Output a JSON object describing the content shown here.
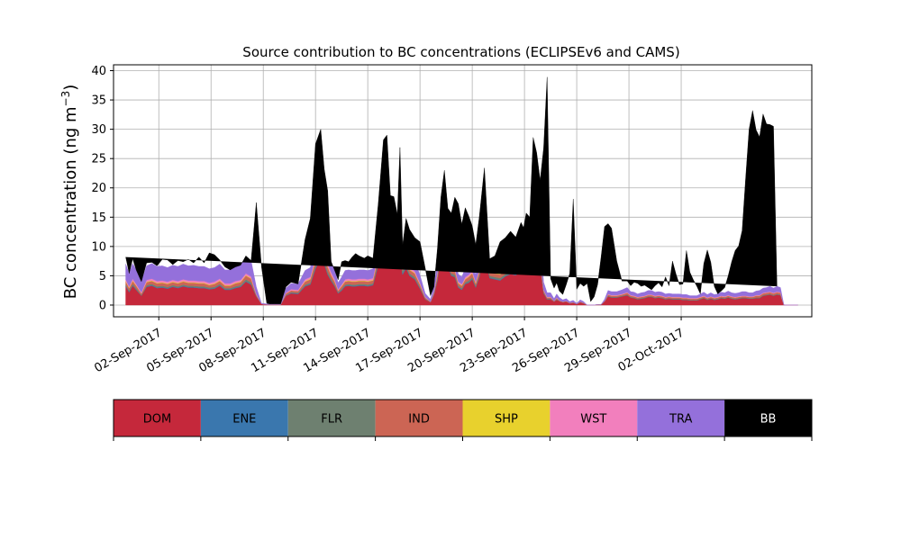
{
  "chart_data": {
    "type": "area",
    "title": "Source contribution to BC concentrations (ECLIPSEv6 and CAMS)",
    "ylabel_main": "BC concentration (ng m",
    "ylabel_sup": "−3",
    "ylabel_close": ")",
    "ylim": [
      -2,
      41
    ],
    "yticks": [
      0,
      5,
      10,
      15,
      20,
      25,
      30,
      35,
      40
    ],
    "x_start_date": "2017-09-01",
    "xlim_days": [
      -1.6,
      38.5
    ],
    "xticks": [
      {
        "day": 1,
        "label": "02-Sep-2017"
      },
      {
        "day": 4,
        "label": "05-Sep-2017"
      },
      {
        "day": 7,
        "label": "08-Sep-2017"
      },
      {
        "day": 10,
        "label": "11-Sep-2017"
      },
      {
        "day": 13,
        "label": "14-Sep-2017"
      },
      {
        "day": 16,
        "label": "17-Sep-2017"
      },
      {
        "day": 19,
        "label": "20-Sep-2017"
      },
      {
        "day": 22,
        "label": "23-Sep-2017"
      },
      {
        "day": 25,
        "label": "26-Sep-2017"
      },
      {
        "day": 28,
        "label": "29-Sep-2017"
      },
      {
        "day": 31,
        "label": "02-Oct-2017"
      }
    ],
    "grid": true,
    "colors": {
      "DOM": "#c5283b",
      "ENE": "#3a77ae",
      "FLR": "#6e8070",
      "IND": "#cc6554",
      "SHP": "#e8d12d",
      "WST": "#f27fbd",
      "TRA": "#9470db",
      "BB": "#000000"
    },
    "legend": [
      {
        "name": "DOM",
        "color": "#c5283b",
        "text_color": "#000000"
      },
      {
        "name": "ENE",
        "color": "#3a77ae",
        "text_color": "#000000"
      },
      {
        "name": "FLR",
        "color": "#6e8070",
        "text_color": "#000000"
      },
      {
        "name": "IND",
        "color": "#cc6554",
        "text_color": "#000000"
      },
      {
        "name": "SHP",
        "color": "#e8d12d",
        "text_color": "#000000"
      },
      {
        "name": "WST",
        "color": "#f27fbd",
        "text_color": "#000000"
      },
      {
        "name": "TRA",
        "color": "#9470db",
        "text_color": "#000000"
      },
      {
        "name": "BB",
        "color": "#000000",
        "text_color": "#ffffff"
      }
    ],
    "series_order": [
      "DOM",
      "ENE",
      "FLR",
      "IND",
      "SHP",
      "WST",
      "TRA",
      "BB"
    ],
    "x": [
      -0.9,
      -0.7,
      -0.5,
      -0.3,
      0,
      0.3,
      0.6,
      0.9,
      1.2,
      1.5,
      1.8,
      2.1,
      2.4,
      2.7,
      3.0,
      3.3,
      3.6,
      3.9,
      4.2,
      4.5,
      4.8,
      5.1,
      5.4,
      5.7,
      6.0,
      6.3,
      6.6,
      6.9,
      7.2,
      7.35,
      7.5,
      7.65,
      7.8,
      8.0,
      8.3,
      8.6,
      9.0,
      9.4,
      9.7,
      10.0,
      10.3,
      10.5,
      10.7,
      10.9,
      11.1,
      11.3,
      11.5,
      11.7,
      11.9,
      12.1,
      12.3,
      12.5,
      12.8,
      13.0,
      13.3,
      13.6,
      13.9,
      14.1,
      14.3,
      14.5,
      14.7,
      14.85,
      15.0,
      15.2,
      15.4,
      15.7,
      16.0,
      16.3,
      16.6,
      16.8,
      17.0,
      17.2,
      17.4,
      17.6,
      17.8,
      18.0,
      18.2,
      18.4,
      18.6,
      18.8,
      19.0,
      19.2,
      19.4,
      19.7,
      20.0,
      20.3,
      20.6,
      20.9,
      21.2,
      21.5,
      21.8,
      21.95,
      22.1,
      22.3,
      22.5,
      22.7,
      22.9,
      23.1,
      23.3,
      23.5,
      23.7,
      23.85,
      24.0,
      24.2,
      24.4,
      24.6,
      24.8,
      25.0,
      25.2,
      25.4,
      25.6,
      25.8,
      26.0,
      26.2,
      26.4,
      26.6,
      26.8,
      27.0,
      27.3,
      27.6,
      27.9,
      28.1,
      28.3,
      28.5,
      28.7,
      28.9,
      29.1,
      29.3,
      29.5,
      29.7,
      29.9,
      30.1,
      30.3,
      30.5,
      30.7,
      30.9,
      31.1,
      31.3,
      31.5,
      31.7,
      31.9,
      32.1,
      32.3,
      32.5,
      32.7,
      32.9,
      33.1,
      33.3,
      33.5,
      33.7,
      33.9,
      34.1,
      34.3,
      34.5,
      34.7,
      34.9,
      35.1,
      35.3,
      35.5,
      35.7,
      35.9,
      36.1,
      36.3,
      36.5,
      36.7,
      36.9,
      37.1,
      37.3,
      37.5,
      37.7
    ],
    "dom": [
      3.2,
      2.2,
      3.3,
      2.6,
      1.6,
      3.1,
      3.3,
      2.9,
      3.0,
      2.8,
      3.1,
      2.9,
      3.2,
      3.0,
      3.0,
      2.9,
      2.9,
      2.7,
      2.8,
      3.3,
      2.6,
      2.6,
      2.9,
      3.1,
      4.0,
      3.5,
      1.5,
      0.2,
      0.1,
      0.1,
      0.1,
      0.1,
      0.1,
      0.1,
      1.6,
      2.0,
      1.9,
      3.2,
      3.5,
      6.2,
      8.0,
      7.0,
      5.2,
      4.1,
      3.2,
      2.0,
      2.5,
      3.2,
      3.3,
      3.2,
      3.2,
      3.3,
      3.3,
      3.2,
      3.4,
      6.8,
      10.4,
      12.5,
      10.1,
      7.8,
      8.5,
      8.0,
      5.2,
      6.3,
      5.0,
      4.4,
      2.8,
      1.0,
      0.5,
      1.8,
      4.2,
      8.8,
      7.6,
      6.6,
      5.0,
      4.8,
      3.0,
      2.6,
      3.6,
      3.8,
      4.4,
      3.0,
      4.7,
      8.8,
      4.6,
      4.4,
      4.2,
      4.9,
      5.3,
      5.1,
      5.7,
      6.1,
      6.8,
      7.8,
      7.2,
      6.5,
      6.7,
      2.0,
      1.0,
      1.0,
      0.6,
      0.9,
      0.7,
      0.5,
      0.6,
      0.3,
      0.4,
      0.2,
      0.5,
      0.3,
      0.0,
      0.0,
      0.0,
      0.1,
      0.1,
      0.6,
      1.5,
      1.3,
      1.3,
      1.5,
      1.7,
      1.3,
      1.2,
      1.0,
      1.1,
      1.2,
      1.4,
      1.4,
      1.2,
      1.3,
      1.2,
      1.0,
      1.1,
      1.0,
      1.0,
      1.0,
      0.9,
      0.9,
      0.8,
      0.8,
      0.8,
      1.0,
      1.2,
      0.9,
      1.1,
      0.9,
      1.0,
      1.2,
      1.1,
      1.3,
      1.1,
      1.0,
      1.1,
      1.2,
      1.2,
      1.1,
      1.1,
      1.2,
      1.2,
      1.6,
      1.7,
      1.8,
      1.6,
      1.8,
      1.7
    ],
    "ene": [
      0.1,
      0.1,
      0.1,
      0.1,
      0.0,
      0.1,
      0.1,
      0.1,
      0.1,
      0.1,
      0.1,
      0.1,
      0.1,
      0.1,
      0.1,
      0.1,
      0.1,
      0.1,
      0.1,
      0.1,
      0.1,
      0.1,
      0.1,
      0.1,
      0.1,
      0.1,
      0.0,
      0.0,
      0.0,
      0.0,
      0.0,
      0.0,
      0.0,
      0.0,
      0.0,
      0.1,
      0.1,
      0.1,
      0.1,
      0.2,
      0.2,
      0.2,
      0.1,
      0.1,
      0.1,
      0.1,
      0.1,
      0.1,
      0.1,
      0.1,
      0.1,
      0.1,
      0.1,
      0.1,
      0.1,
      0.2,
      0.3,
      0.3,
      0.3,
      0.2,
      0.2,
      0.2,
      0.2,
      0.2,
      0.1,
      0.1,
      0.1,
      0.0,
      0.0,
      0.0,
      0.1,
      0.2,
      0.2,
      0.2,
      0.1,
      0.1,
      0.1,
      0.1,
      0.1,
      0.1,
      0.1,
      0.1,
      0.1,
      0.2,
      0.1,
      0.1,
      0.1,
      0.1,
      0.1,
      0.1,
      0.1,
      0.2,
      0.2,
      0.2,
      0.2,
      0.2,
      0.2,
      0.1,
      0.0,
      0.0,
      0.0,
      0.0,
      0.0,
      0.0,
      0.0,
      0.0,
      0.0,
      0.0,
      0.0,
      0.0,
      0.0,
      0.0,
      0.0,
      0.0,
      0.0,
      0.0,
      0.0,
      0.0,
      0.0,
      0.0,
      0.0,
      0.0,
      0.0,
      0.0,
      0.0,
      0.0,
      0.0,
      0.0,
      0.0,
      0.0,
      0.0,
      0.0,
      0.0,
      0.0,
      0.0,
      0.0,
      0.0,
      0.0,
      0.0,
      0.0,
      0.0,
      0.0,
      0.0,
      0.0,
      0.0,
      0.0,
      0.0,
      0.0,
      0.0,
      0.0,
      0.0,
      0.0,
      0.0,
      0.0,
      0.0,
      0.0,
      0.0,
      0.0,
      0.0,
      0.0,
      0.0,
      0.0,
      0.0,
      0.0,
      0.0,
      0.0,
      0.0
    ],
    "flr": [
      0.2,
      0.2,
      0.2,
      0.2,
      0.1,
      0.2,
      0.2,
      0.2,
      0.2,
      0.2,
      0.2,
      0.2,
      0.2,
      0.2,
      0.2,
      0.2,
      0.2,
      0.2,
      0.2,
      0.2,
      0.2,
      0.2,
      0.2,
      0.2,
      0.3,
      0.3,
      0.1,
      0.0,
      0.0,
      0.0,
      0.0,
      0.0,
      0.0,
      0.0,
      0.1,
      0.1,
      0.1,
      0.2,
      0.2,
      0.4,
      0.5,
      0.5,
      0.4,
      0.3,
      0.2,
      0.1,
      0.2,
      0.2,
      0.2,
      0.2,
      0.2,
      0.2,
      0.2,
      0.2,
      0.2,
      0.5,
      0.7,
      0.8,
      0.7,
      0.5,
      0.6,
      0.5,
      0.4,
      0.4,
      0.3,
      0.3,
      0.2,
      0.1,
      0.0,
      0.1,
      0.3,
      0.6,
      0.5,
      0.4,
      0.3,
      0.3,
      0.2,
      0.2,
      0.2,
      0.3,
      0.3,
      0.2,
      0.3,
      0.6,
      0.3,
      0.3,
      0.3,
      0.3,
      0.4,
      0.3,
      0.4,
      0.4,
      0.5,
      0.5,
      0.5,
      0.4,
      0.5,
      0.1,
      0.1,
      0.1,
      0.0,
      0.1,
      0.0,
      0.0,
      0.0,
      0.0,
      0.0,
      0.0,
      0.0,
      0.0,
      0.0,
      0.0,
      0.0,
      0.0,
      0.0,
      0.0,
      0.1,
      0.1,
      0.1,
      0.1,
      0.1,
      0.1,
      0.1,
      0.1,
      0.1,
      0.1,
      0.1,
      0.1,
      0.1,
      0.1,
      0.1,
      0.1,
      0.1,
      0.1,
      0.1,
      0.1,
      0.1,
      0.1,
      0.1,
      0.1,
      0.1,
      0.1,
      0.1,
      0.1,
      0.1,
      0.1,
      0.1,
      0.1,
      0.1,
      0.1,
      0.1,
      0.1,
      0.1,
      0.1,
      0.1,
      0.1,
      0.1,
      0.1,
      0.1,
      0.1,
      0.1,
      0.1,
      0.1,
      0.1,
      0.1
    ],
    "ind": [
      0.5,
      0.4,
      0.5,
      0.4,
      0.3,
      0.5,
      0.5,
      0.5,
      0.5,
      0.5,
      0.5,
      0.5,
      0.5,
      0.5,
      0.5,
      0.5,
      0.5,
      0.4,
      0.5,
      0.5,
      0.4,
      0.4,
      0.5,
      0.5,
      0.6,
      0.6,
      0.2,
      0.0,
      0.0,
      0.0,
      0.0,
      0.0,
      0.0,
      0.0,
      0.3,
      0.3,
      0.3,
      0.5,
      0.6,
      0.9,
      1.0,
      1.0,
      0.8,
      0.6,
      0.5,
      0.3,
      0.4,
      0.5,
      0.5,
      0.5,
      0.5,
      0.5,
      0.5,
      0.5,
      0.5,
      0.9,
      1.1,
      1.3,
      1.1,
      0.9,
      1.0,
      0.9,
      0.7,
      0.8,
      0.6,
      0.6,
      0.4,
      0.2,
      0.1,
      0.3,
      0.6,
      1.0,
      0.9,
      0.8,
      0.6,
      0.6,
      0.4,
      0.4,
      0.5,
      0.6,
      0.6,
      0.4,
      0.6,
      1.0,
      0.6,
      0.6,
      0.6,
      0.7,
      0.7,
      0.7,
      0.8,
      0.8,
      0.9,
      0.9,
      0.9,
      0.8,
      0.9,
      0.3,
      0.2,
      0.2,
      0.1,
      0.2,
      0.1,
      0.1,
      0.1,
      0.1,
      0.1,
      0.0,
      0.1,
      0.1,
      0.0,
      0.0,
      0.0,
      0.0,
      0.0,
      0.1,
      0.2,
      0.2,
      0.2,
      0.2,
      0.3,
      0.2,
      0.2,
      0.2,
      0.2,
      0.2,
      0.2,
      0.2,
      0.2,
      0.2,
      0.2,
      0.2,
      0.2,
      0.2,
      0.2,
      0.2,
      0.2,
      0.2,
      0.2,
      0.2,
      0.2,
      0.2,
      0.2,
      0.2,
      0.2,
      0.2,
      0.2,
      0.2,
      0.2,
      0.2,
      0.2,
      0.2,
      0.2,
      0.2,
      0.2,
      0.2,
      0.2,
      0.3,
      0.3,
      0.3,
      0.3,
      0.3,
      0.3,
      0.3,
      0.3
    ],
    "shp": [
      0.1,
      0.1,
      0.1,
      0.1,
      0.0,
      0.1,
      0.1,
      0.1,
      0.1,
      0.1,
      0.1,
      0.1,
      0.1,
      0.1,
      0.1,
      0.1,
      0.1,
      0.1,
      0.1,
      0.1,
      0.1,
      0.1,
      0.1,
      0.1,
      0.1,
      0.1,
      0.0,
      0.0,
      0.0,
      0.0,
      0.0,
      0.0,
      0.0,
      0.0,
      0.0,
      0.0,
      0.0,
      0.1,
      0.1,
      0.1,
      0.1,
      0.1,
      0.1,
      0.1,
      0.1,
      0.0,
      0.1,
      0.1,
      0.1,
      0.1,
      0.1,
      0.1,
      0.1,
      0.1,
      0.1,
      0.1,
      0.2,
      0.2,
      0.2,
      0.1,
      0.1,
      0.1,
      0.1,
      0.1,
      0.1,
      0.1,
      0.1,
      0.0,
      0.0,
      0.0,
      0.1,
      0.1,
      0.1,
      0.1,
      0.1,
      0.1,
      0.1,
      0.1,
      0.1,
      0.1,
      0.1,
      0.1,
      0.1,
      0.1,
      0.1,
      0.1,
      0.1,
      0.1,
      0.1,
      0.1,
      0.1,
      0.1,
      0.1,
      0.1,
      0.1,
      0.1,
      0.1,
      0.0,
      0.0,
      0.0,
      0.0,
      0.0,
      0.0,
      0.0,
      0.0,
      0.0,
      0.0,
      0.0,
      0.0,
      0.0,
      0.0,
      0.0,
      0.0,
      0.0,
      0.0,
      0.0,
      0.0,
      0.0,
      0.0,
      0.0,
      0.0,
      0.0,
      0.0,
      0.0,
      0.0,
      0.0,
      0.0,
      0.0,
      0.0,
      0.0,
      0.0,
      0.0,
      0.0,
      0.0,
      0.0,
      0.0,
      0.0,
      0.0,
      0.0,
      0.0,
      0.0,
      0.0,
      0.0,
      0.0,
      0.0,
      0.0,
      0.0,
      0.0,
      0.0,
      0.0,
      0.0,
      0.0,
      0.0,
      0.0,
      0.0,
      0.0,
      0.0,
      0.0,
      0.0,
      0.0,
      0.0,
      0.0,
      0.0,
      0.0,
      0.0
    ],
    "wst": [
      0.3,
      0.2,
      0.3,
      0.2,
      0.2,
      0.3,
      0.3,
      0.3,
      0.3,
      0.3,
      0.3,
      0.3,
      0.3,
      0.3,
      0.3,
      0.3,
      0.3,
      0.3,
      0.3,
      0.3,
      0.3,
      0.3,
      0.3,
      0.3,
      0.3,
      0.3,
      0.1,
      0.0,
      0.0,
      0.0,
      0.0,
      0.0,
      0.0,
      0.0,
      0.1,
      0.2,
      0.2,
      0.3,
      0.3,
      0.5,
      0.6,
      0.6,
      0.5,
      0.4,
      0.3,
      0.2,
      0.2,
      0.3,
      0.3,
      0.3,
      0.3,
      0.3,
      0.3,
      0.3,
      0.3,
      0.5,
      0.7,
      0.8,
      0.7,
      0.5,
      0.6,
      0.5,
      0.4,
      0.4,
      0.3,
      0.3,
      0.2,
      0.1,
      0.0,
      0.1,
      0.3,
      0.6,
      0.5,
      0.4,
      0.3,
      0.3,
      0.2,
      0.2,
      0.3,
      0.3,
      0.3,
      0.2,
      0.3,
      0.6,
      0.3,
      0.3,
      0.3,
      0.4,
      0.4,
      0.4,
      0.4,
      0.5,
      0.5,
      0.6,
      0.5,
      0.5,
      0.5,
      0.1,
      0.1,
      0.1,
      0.0,
      0.1,
      0.0,
      0.0,
      0.0,
      0.0,
      0.0,
      0.0,
      0.0,
      0.0,
      0.0,
      0.0,
      0.0,
      0.0,
      0.0,
      0.0,
      0.1,
      0.1,
      0.1,
      0.1,
      0.1,
      0.1,
      0.1,
      0.1,
      0.1,
      0.1,
      0.1,
      0.1,
      0.1,
      0.1,
      0.1,
      0.1,
      0.1,
      0.1,
      0.1,
      0.1,
      0.1,
      0.1,
      0.1,
      0.1,
      0.1,
      0.1,
      0.1,
      0.1,
      0.1,
      0.1,
      0.1,
      0.1,
      0.1,
      0.1,
      0.1,
      0.1,
      0.1,
      0.1,
      0.1,
      0.1,
      0.1,
      0.1,
      0.1,
      0.1,
      0.1,
      0.1,
      0.1,
      0.1,
      0.1
    ],
    "tra": [
      2.6,
      2.2,
      2.6,
      2.4,
      1.8,
      2.4,
      2.6,
      2.5,
      2.5,
      2.4,
      2.5,
      2.5,
      2.6,
      2.5,
      2.6,
      2.5,
      2.5,
      2.4,
      2.4,
      2.5,
      2.3,
      2.3,
      2.4,
      2.5,
      2.8,
      2.7,
      1.2,
      0.1,
      0.1,
      0.1,
      0.1,
      0.1,
      0.1,
      0.1,
      0.8,
      1.0,
      1.0,
      1.5,
      1.6,
      2.2,
      2.6,
      2.4,
      2.1,
      1.8,
      1.5,
      1.1,
      1.3,
      1.5,
      1.5,
      1.5,
      1.5,
      1.5,
      1.5,
      1.5,
      1.6,
      2.5,
      3.0,
      3.2,
      2.9,
      2.5,
      2.6,
      2.6,
      2.1,
      2.3,
      1.9,
      1.8,
      1.3,
      0.6,
      0.4,
      0.8,
      1.6,
      2.6,
      2.4,
      2.2,
      1.9,
      1.8,
      1.3,
      1.2,
      1.5,
      1.5,
      1.6,
      1.2,
      1.6,
      2.4,
      1.6,
      1.8,
      2.0,
      2.4,
      2.8,
      2.6,
      3.0,
      3.1,
      3.3,
      3.4,
      3.3,
      3.1,
      3.1,
      1.3,
      0.7,
      0.7,
      0.4,
      0.6,
      0.5,
      0.3,
      0.4,
      0.2,
      0.3,
      0.1,
      0.3,
      0.2,
      0.0,
      0.0,
      0.0,
      0.0,
      0.0,
      0.3,
      0.6,
      0.6,
      0.6,
      0.7,
      0.8,
      0.6,
      0.6,
      0.5,
      0.6,
      0.6,
      0.7,
      0.7,
      0.6,
      0.6,
      0.6,
      0.5,
      0.5,
      0.5,
      0.5,
      0.5,
      0.5,
      0.5,
      0.4,
      0.4,
      0.4,
      0.5,
      0.6,
      0.5,
      0.6,
      0.5,
      0.5,
      0.6,
      0.6,
      0.7,
      0.6,
      0.6,
      0.6,
      0.7,
      0.7,
      0.6,
      0.6,
      0.7,
      0.8,
      0.8,
      0.8,
      0.9,
      0.8,
      0.9,
      0.8
    ],
    "total": [
      8.2,
      5.3,
      7.9,
      5.9,
      4.0,
      7.2,
      7.3,
      6.7,
      7.8,
      7.7,
      6.9,
      7.6,
      7.4,
      7.8,
      7.2,
      8.2,
      7.2,
      8.9,
      8.6,
      7.7,
      6.5,
      6.0,
      6.5,
      6.8,
      8.4,
      6.7,
      17.5,
      6.5,
      0.3,
      0.2,
      0.2,
      0.2,
      0.2,
      0.2,
      3.1,
      3.9,
      3.4,
      11.2,
      14.8,
      27.5,
      30.0,
      23.2,
      19.5,
      6.5,
      5.5,
      4.3,
      7.4,
      7.6,
      7.4,
      8.2,
      8.8,
      8.4,
      8.0,
      8.4,
      8.0,
      17.2,
      28.2,
      29.0,
      18.7,
      18.5,
      15.5,
      26.9,
      10.2,
      14.8,
      12.9,
      11.5,
      10.8,
      6.3,
      1.6,
      3.0,
      9.6,
      18.4,
      23.0,
      16.5,
      15.7,
      18.4,
      17.3,
      13.8,
      16.6,
      15.2,
      13.5,
      10.3,
      14.9,
      23.4,
      7.9,
      8.4,
      10.8,
      11.5,
      12.6,
      11.6,
      14.1,
      13.2,
      15.7,
      15.0,
      28.6,
      26.0,
      21.3,
      26.8,
      38.9,
      4.5,
      2.9,
      3.8,
      2.4,
      1.8,
      3.5,
      5.4,
      18.1,
      2.7,
      3.7,
      3.2,
      3.7,
      0.6,
      1.4,
      3.5,
      8.2,
      13.4,
      13.9,
      13.1,
      7.5,
      4.1,
      4.1,
      3.3,
      3.9,
      3.7,
      3.2,
      3.4,
      3.0,
      2.6,
      3.3,
      3.8,
      3.1,
      4.8,
      3.3,
      7.5,
      5.3,
      3.5,
      3.6,
      9.3,
      5.6,
      4.3,
      3.2,
      1.8,
      7.1,
      9.4,
      7.3,
      3.2,
      1.7,
      2.4,
      3.0,
      5.0,
      7.4,
      9.3,
      10.1,
      12.7,
      21.6,
      30.0,
      33.2,
      29.9,
      28.7,
      32.6,
      30.9,
      30.8,
      30.5,
      1.8
    ]
  }
}
